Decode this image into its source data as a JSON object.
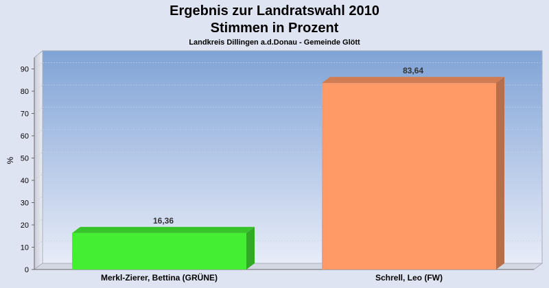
{
  "chart_data": {
    "type": "bar",
    "title": "Ergebnis zur Landratswahl 2010",
    "title2": "Stimmen in Prozent",
    "subtitle": "Landkreis Dillingen a.d.Donau - Gemeinde Glött",
    "ylabel": "%",
    "ylim": [
      0,
      95
    ],
    "yticks": [
      "0",
      "10",
      "20",
      "30",
      "40",
      "50",
      "60",
      "70",
      "80",
      "90"
    ],
    "categories": [
      "Merkl-Zierer, Bettina (GRÜNE)",
      "Schrell, Leo (FW)"
    ],
    "values": [
      16.36,
      83.64
    ],
    "value_labels": [
      "16,36",
      "83,64"
    ],
    "colors": [
      "#44ee33",
      "#ff9966"
    ],
    "grid": true,
    "legend": "none"
  }
}
